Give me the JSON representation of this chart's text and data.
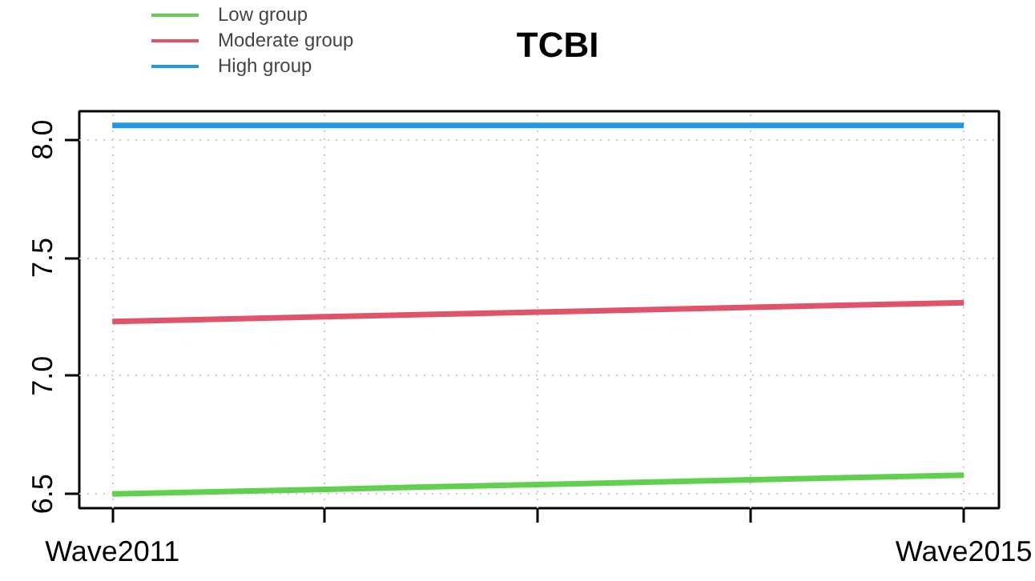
{
  "chart_data": {
    "type": "line",
    "title": "TCBI",
    "categories": [
      "Wave2011",
      null,
      null,
      null,
      "Wave2015"
    ],
    "series": [
      {
        "name": "Low group",
        "color": "#61d04f",
        "values": [
          6.5,
          6.52,
          6.54,
          6.56,
          6.58
        ]
      },
      {
        "name": "Moderate group",
        "color": "#df536b",
        "values": [
          7.23,
          7.25,
          7.27,
          7.29,
          7.31
        ]
      },
      {
        "name": "High group",
        "color": "#2297e6",
        "values": [
          8.06,
          8.06,
          8.06,
          8.06,
          8.06
        ]
      }
    ],
    "ylim": [
      6.44,
      8.12
    ],
    "yticks": [
      6.5,
      {
        "value": 7,
        "label": "7.0"
      },
      7.5,
      {
        "value": 8,
        "label": "8.0"
      }
    ],
    "grid": true,
    "legend": "top left",
    "marker": "none",
    "line_style": "solid"
  }
}
